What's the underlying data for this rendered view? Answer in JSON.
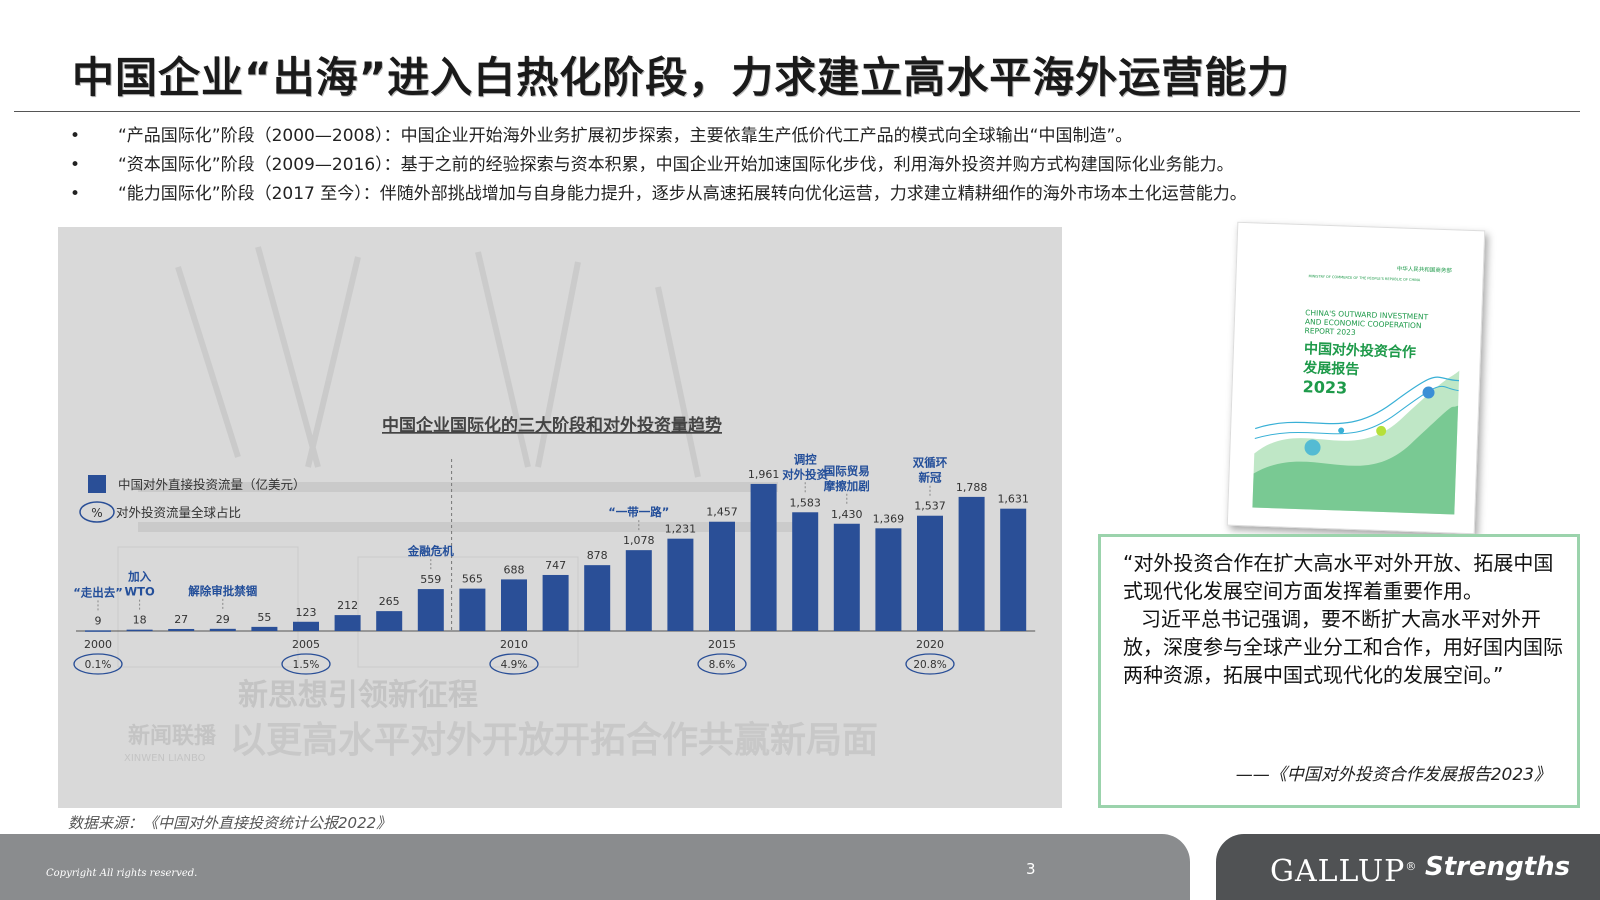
{
  "slide": {
    "title": "中国企业“出海”进入白热化阶段，力求建立高水平海外运营能力",
    "bullets": [
      "“产品国际化”阶段（2000—2008）：中国企业开始海外业务扩展初步探索，主要依靠生产低价代工产品的模式向全球输出“中国制造”。",
      "“资本国际化”阶段（2009—2016）：基于之前的经验探索与资本积累，中国企业开始加速国际化步伐，利用海外投资并购方式构建国际化业务能力。",
      "“能力国际化”阶段（2017 至今）：伴随外部挑战增加与自身能力提升，逐步从高速拓展转向优化运营，力求建立精耕细作的海外市场本土化运营能力。"
    ],
    "bullet_marker": "•",
    "source": "数据来源：《中国对外直接投资统计公报2022》",
    "page_number": "3",
    "copyright": "Copyright All rights reserved."
  },
  "chart_data": {
    "type": "bar",
    "title": "中国企业国际化的三大阶段和对外投资量趋势",
    "legend": {
      "bar_label": "中国对外直接投资流量（亿美元）",
      "pct_symbol": "%",
      "pct_label": "对外投资流量全球占比",
      "position": "top-left"
    },
    "categories": [
      "2000",
      "2001",
      "2002",
      "2003",
      "2004",
      "2005",
      "2006",
      "2007",
      "2008",
      "2009",
      "2010",
      "2011",
      "2012",
      "2013",
      "2014",
      "2015",
      "2016",
      "2017",
      "2018",
      "2019",
      "2020",
      "2021",
      "2022"
    ],
    "values": [
      9,
      18,
      27,
      29,
      55,
      123,
      212,
      265,
      559,
      565,
      688,
      747,
      878,
      1078,
      1231,
      1457,
      1961,
      1583,
      1430,
      1369,
      1537,
      1788,
      1631
    ],
    "value_labels": [
      "9",
      "18",
      "27",
      "29",
      "55",
      "123",
      "212",
      "265",
      "559",
      "565",
      "688",
      "747",
      "878",
      "1,078",
      "1,231",
      "1,457",
      "1,961",
      "1,583",
      "1,430",
      "1,369",
      "1,537",
      "1,788",
      "1,631"
    ],
    "x_tick_labels": [
      {
        "index": 0,
        "label": "2000"
      },
      {
        "index": 5,
        "label": "2005"
      },
      {
        "index": 10,
        "label": "2010"
      },
      {
        "index": 15,
        "label": "2015"
      },
      {
        "index": 20,
        "label": "2020"
      }
    ],
    "global_share": [
      {
        "index": 0,
        "label": "0.1%"
      },
      {
        "index": 5,
        "label": "1.5%"
      },
      {
        "index": 10,
        "label": "4.9%"
      },
      {
        "index": 15,
        "label": "8.6%"
      },
      {
        "index": 20,
        "label": "20.8%"
      }
    ],
    "annotations": [
      {
        "index": 0,
        "lines": [
          "“走出去”"
        ]
      },
      {
        "index": 1,
        "lines": [
          "加入",
          "WTO"
        ]
      },
      {
        "index": 3,
        "lines": [
          "解除审批禁锢"
        ]
      },
      {
        "index": 8,
        "lines": [
          "金融危机"
        ]
      },
      {
        "index": 13,
        "lines": [
          "“一带一路”"
        ]
      },
      {
        "index": 17,
        "lines": [
          "调控",
          "对外投资"
        ]
      },
      {
        "index": 18,
        "lines": [
          "国际贸易",
          "摩擦加剧"
        ]
      },
      {
        "index": 20,
        "lines": [
          "双循环",
          "新冠"
        ]
      }
    ],
    "phase_dividers_after_index": [
      8
    ],
    "ylim": [
      0,
      2000
    ],
    "xlabel": "",
    "ylabel": "",
    "grid": false,
    "bar_color": "#2a4f97",
    "annotation_color": "#244f9a",
    "background_watermark": {
      "line1": "新思想引领新征程",
      "line2": "以更高水平对外开放开拓合作共赢新局面",
      "logo": "新闻联播",
      "logo_sub": "XINWEN LIANBO"
    }
  },
  "report_cover": {
    "header": "中华人民共和国商务部",
    "subheader": "MINISTRY OF COMMERCE OF THE PEOPLE'S REPUBLIC OF CHINA",
    "english_title": [
      "CHINA'S OUTWARD INVESTMENT",
      "AND ECONOMIC COOPERATION",
      "REPORT 2023"
    ],
    "chinese_title": [
      "中国对外投资合作",
      "发展报告"
    ],
    "year": "2023",
    "accent_color": "#1e9a4a"
  },
  "quote": {
    "paragraph1": "“对外投资合作在扩大高水平对外开放、拓展中国式现代化发展空间方面发挥着重要作用。",
    "paragraph2": "习近平总书记强调，要不断扩大高水平对外开放，深度参与全球产业分工和合作，用好国内国际两种资源，拓展中国式现代化的发展空间。”",
    "citation": "——《中国对外投资合作发展报告2023》",
    "border_color": "#9bd3ac"
  },
  "brand": {
    "gallup": "GALLUP",
    "gallup_mark": "®",
    "strengths": "Strengths"
  }
}
